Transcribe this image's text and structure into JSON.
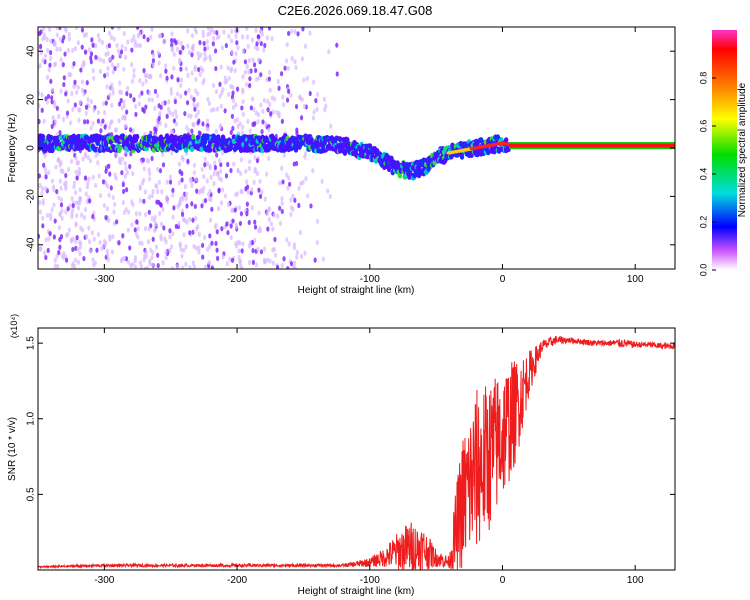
{
  "title": "C2E6.2026.069.18.47.G08",
  "chart_data": [
    {
      "type": "heatmap",
      "xlabel": "Height of straight line (km)",
      "ylabel": "Frequency (Hz)",
      "xlim": [
        -350,
        130
      ],
      "ylim": [
        -50,
        50
      ],
      "x_ticks": [
        -300,
        -200,
        -100,
        0,
        100
      ],
      "y_ticks": [
        -40,
        -20,
        0,
        20,
        40
      ],
      "colorbar": {
        "label": "Normalized spectral amplitude",
        "range": [
          0.0,
          1.0
        ],
        "ticks": [
          "0.0",
          "0.2",
          "0.4",
          "0.6",
          "0.8"
        ],
        "tick_values": [
          0.0,
          0.2,
          0.4,
          0.6,
          0.8
        ],
        "colors": [
          "#ff33cc",
          "#ff0000",
          "#ff8c00",
          "#ffff00",
          "#00dd00",
          "#00dddd",
          "#0000ff",
          "#cc55ff",
          "#ffffff"
        ]
      },
      "ridge": {
        "heights": [
          -350,
          -300,
          -250,
          -200,
          -150,
          -120,
          -100,
          -90,
          -80,
          -70,
          -60,
          -50,
          -40,
          -30,
          -20,
          -10,
          0,
          10,
          130
        ],
        "frequency": [
          2,
          2,
          2,
          2,
          2,
          1,
          -2,
          -5,
          -8,
          -10,
          -8,
          -4,
          -2,
          -1,
          0,
          1,
          2,
          1,
          1
        ]
      },
      "scatter_extent_km": [
        -350,
        -120
      ],
      "stable_line_start_km": 5
    },
    {
      "type": "line",
      "xlabel": "Height of straight line (km)",
      "ylabel": "SNR (10 * v/v)",
      "multiplier": "(x10⁴)",
      "xlim": [
        -350,
        130
      ],
      "ylim": [
        0.0,
        1.6
      ],
      "x_ticks": [
        -300,
        -200,
        -100,
        0,
        100
      ],
      "y_ticks": [
        0.5,
        1.0,
        1.5
      ],
      "series": [
        {
          "name": "SNR",
          "color": "#ee1c1c",
          "x": [
            -350,
            -300,
            -250,
            -200,
            -150,
            -120,
            -100,
            -90,
            -80,
            -70,
            -60,
            -50,
            -40,
            -35,
            -30,
            -25,
            -20,
            -10,
            0,
            10,
            20,
            30,
            40,
            50,
            60,
            70,
            80,
            90,
            100,
            110,
            120,
            130
          ],
          "y": [
            0.02,
            0.03,
            0.03,
            0.03,
            0.03,
            0.03,
            0.05,
            0.08,
            0.12,
            0.15,
            0.14,
            0.08,
            0.05,
            0.25,
            0.45,
            0.55,
            0.65,
            0.75,
            0.9,
            1.05,
            1.3,
            1.48,
            1.52,
            1.52,
            1.51,
            1.5,
            1.5,
            1.5,
            1.49,
            1.49,
            1.48,
            1.48
          ],
          "noise_amplitude": [
            0.005,
            0.01,
            0.01,
            0.01,
            0.01,
            0.01,
            0.03,
            0.06,
            0.12,
            0.18,
            0.15,
            0.06,
            0.04,
            0.3,
            0.45,
            0.5,
            0.55,
            0.5,
            0.45,
            0.35,
            0.15,
            0.04,
            0.03,
            0.02,
            0.02,
            0.02,
            0.02,
            0.03,
            0.02,
            0.02,
            0.02,
            0.02
          ]
        }
      ]
    }
  ]
}
